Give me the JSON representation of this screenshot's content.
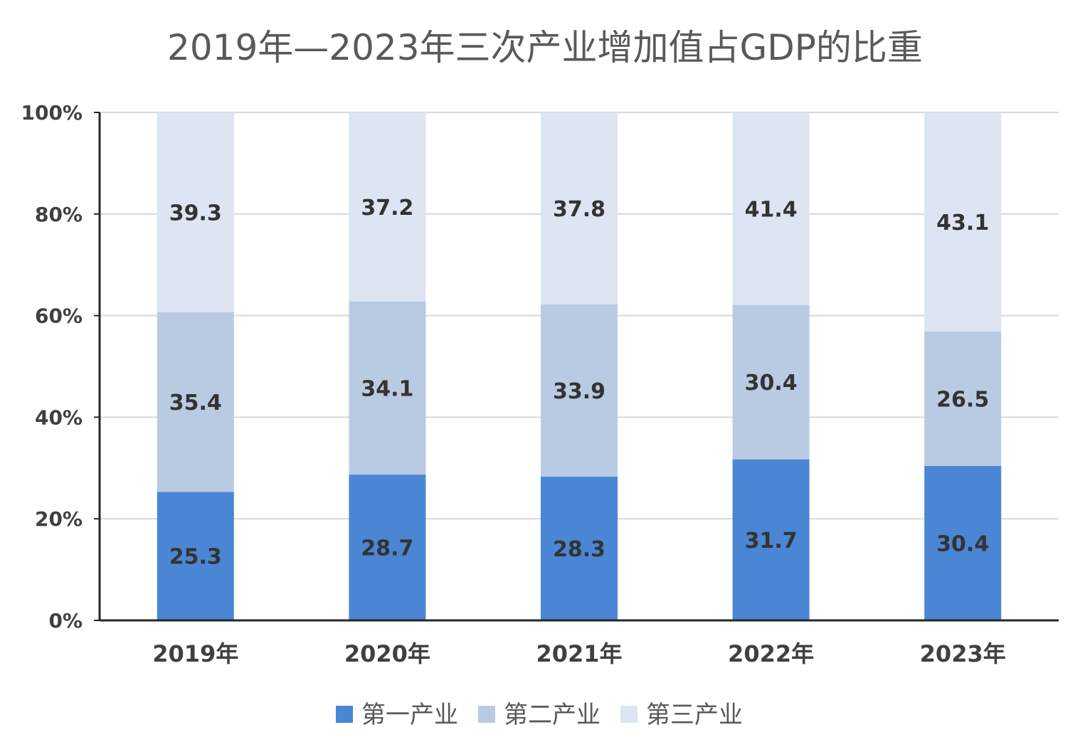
{
  "chart_data": {
    "type": "bar",
    "stacked": true,
    "title": "2019年—2023年三次产业增加值占GDP的比重",
    "categories": [
      "2019年",
      "2020年",
      "2021年",
      "2022年",
      "2023年"
    ],
    "series": [
      {
        "name": "第一产业",
        "color": "#4a86d4",
        "values": [
          25.3,
          28.7,
          28.3,
          31.7,
          30.4
        ]
      },
      {
        "name": "第二产业",
        "color": "#b9cbe3",
        "values": [
          35.4,
          34.1,
          33.9,
          30.4,
          26.5
        ]
      },
      {
        "name": "第三产业",
        "color": "#dce5f1",
        "values": [
          39.3,
          37.2,
          37.8,
          41.4,
          43.1
        ]
      }
    ],
    "y_ticks": [
      "0%",
      "20%",
      "40%",
      "60%",
      "80%",
      "100%"
    ],
    "ylim": [
      0,
      100
    ],
    "grid": true,
    "legend": "bottom"
  }
}
